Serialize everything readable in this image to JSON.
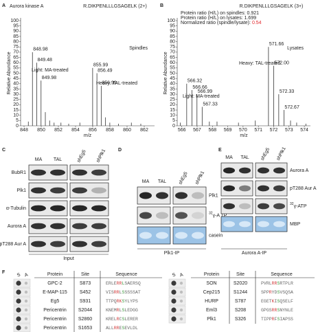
{
  "chart_data": [
    {
      "type": "spectrum",
      "title": "Aurora kinase A",
      "subtitle": "R.DIKPENLLLGSAGELK (2+)",
      "sample": "Spindles",
      "x_label": "m/z",
      "y_label": "Relative Abundance",
      "xlim": [
        847.6,
        863.2
      ],
      "xticks": [
        848,
        850,
        852,
        854,
        856,
        858,
        860,
        862
      ],
      "ylim": [
        0,
        100
      ],
      "yticks": [
        0,
        5,
        10,
        15,
        20,
        25,
        30,
        35,
        40,
        45,
        50,
        55,
        60,
        65,
        70,
        75,
        80,
        85,
        90,
        95,
        100
      ],
      "light_label": "Light: MA-treated",
      "light_color": "#3b4fa0",
      "heavy_label": "Heavy: TAL-treated",
      "heavy_color": "#e2262b",
      "x": [
        848.5,
        848.98,
        849.48,
        849.98,
        850.48,
        850.98,
        851.5,
        852.3,
        853.2,
        854.5,
        855.99,
        856.49,
        856.99,
        857.49,
        857.99,
        859,
        860.5,
        861.6
      ],
      "values": [
        4,
        70,
        60,
        43,
        13,
        5,
        3,
        3,
        2,
        3,
        55,
        50,
        38,
        8,
        3,
        2,
        3,
        2
      ],
      "x_labels": [
        null,
        "848.98",
        "849.48",
        "849.98",
        null,
        null,
        null,
        null,
        null,
        null,
        "855.99",
        "856.49",
        "856.99",
        null,
        null,
        null,
        null,
        null
      ],
      "color": "#333333"
    },
    {
      "type": "spectrum",
      "subtitle": "R.DIKPENLLLGSAGELK (3+)",
      "sample": "Lysates",
      "x_label": "m/z",
      "y_label": "Relative Abundance",
      "info": [
        "Protein ratio (H/L) on spindles: 0.921",
        "Protein ratio (H/L) on lysates: 1.699"
      ],
      "normalized_label": "Normalized ratio (spindle/lysate):",
      "normalized_value": 0.54,
      "normalized_color": "#e2262b",
      "xlim": [
        565.7,
        574.4
      ],
      "xticks": [
        566,
        567,
        568,
        569,
        570,
        571,
        572,
        573,
        574
      ],
      "ylim": [
        0,
        100
      ],
      "yticks": [
        0,
        5,
        10,
        15,
        20,
        25,
        30,
        35,
        40,
        45,
        50,
        55,
        60,
        65,
        70,
        75,
        80,
        85,
        90,
        95,
        100
      ],
      "light_label": "Light: MA-treated",
      "light_color": "#3b4fa0",
      "heavy_label": "Heavy: TAL-treated",
      "heavy_color": "#e2262b",
      "x": [
        565.9,
        566.32,
        566.66,
        566.99,
        567.33,
        567.8,
        568.3,
        569.7,
        570.8,
        571.66,
        572.0,
        572.33,
        572.67,
        573.1,
        573.5,
        574.1
      ],
      "values": [
        3,
        40,
        34,
        30,
        18,
        4,
        4,
        3,
        5,
        75,
        57,
        30,
        15,
        5,
        3,
        2
      ],
      "x_labels": [
        null,
        "566.32",
        "566.66",
        "566.99",
        "567.33",
        null,
        null,
        null,
        null,
        "571.66",
        "572.00",
        "572.33",
        "572.67",
        null,
        null,
        null
      ],
      "color": "#333333"
    }
  ],
  "panel_letters": [
    "A",
    "B",
    "C",
    "D",
    "E",
    "F"
  ],
  "blots": [
    {
      "columns": [
        "MA",
        "TAL",
        "shEg5",
        "shPlk1"
      ],
      "rows": [
        "BubR1",
        "Plk1",
        "α-Tubulin",
        "Aurora A",
        "pT288 Aur A"
      ],
      "footer": "Input"
    },
    {
      "columns": [
        "MA",
        "TAL",
        "shEg5",
        "shPlk1"
      ],
      "rows": [
        "Plk1",
        {
          "sup": "32",
          "label": "γ-A TP"
        },
        "casein"
      ],
      "footer": "Plk1-IP"
    },
    {
      "columns": [
        "MA",
        "TAL",
        "shEg5",
        "shPlk1"
      ],
      "rows": [
        "Aurora A",
        "pT288 Aur A",
        {
          "sup": "32",
          "label": "γ-ATP"
        },
        "MBP"
      ],
      "footer": "Aurora A-IP"
    }
  ],
  "tables": [
    {
      "spot_headers": [
        "S",
        "A"
      ],
      "headers": [
        "Protein",
        "Site",
        "Sequence"
      ],
      "rows": [
        [
          "GPC-2",
          "S873",
          "ERLERRLSAERSQ"
        ],
        [
          "E-MAP-115",
          "S452",
          "VISRRLSSSSSAT"
        ],
        [
          "Eg5",
          "S931",
          "TTPQRKSYLYPS"
        ],
        [
          "Pericentrin",
          "S2044",
          "KNEMRLSLEDGG"
        ],
        [
          "Pericentrin",
          "S2860",
          "KRELRCSLERER"
        ],
        [
          "Pericentrin",
          "S1653",
          "ALLRRESEVLDL"
        ]
      ]
    },
    {
      "spot_headers": [
        "S",
        "A"
      ],
      "headers": [
        "Protein",
        "Site",
        "Sequence"
      ],
      "rows": [
        [
          "SON",
          "S2020",
          "PVRLRRSRTPLR"
        ],
        [
          "Cep215",
          "S1244",
          "SPPRYDSVSQSA"
        ],
        [
          "HURP",
          "S787",
          "EGETKISQSELF"
        ],
        [
          "Eml3",
          "S208",
          "GPGSRRSNYNLE"
        ],
        [
          "Plk1",
          "S326",
          "TIPPRFSIAPSS"
        ]
      ]
    }
  ]
}
